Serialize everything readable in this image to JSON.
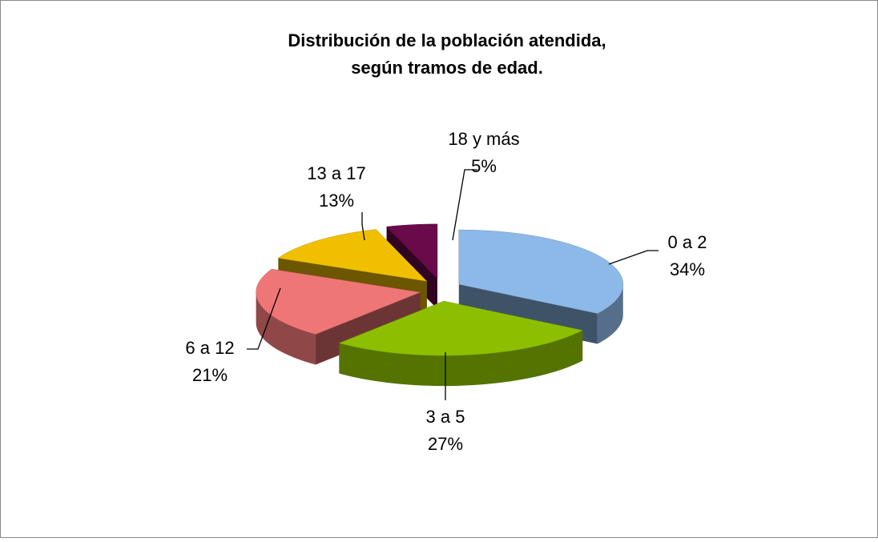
{
  "chart_data": {
    "type": "pie3d",
    "title_lines": [
      "Distribución de la población atendida,",
      "según tramos de edad."
    ],
    "categories": [
      "0 a 2",
      "3 a 5",
      "6 a 12",
      "13 a 17",
      "18 y más"
    ],
    "values": [
      34,
      27,
      21,
      13,
      5
    ],
    "value_labels": [
      "34%",
      "27%",
      "21%",
      "13%",
      "5%"
    ],
    "colors": [
      "#8db9e8",
      "#8dbf00",
      "#ef7676",
      "#f0c000",
      "#6a0a4a"
    ]
  }
}
